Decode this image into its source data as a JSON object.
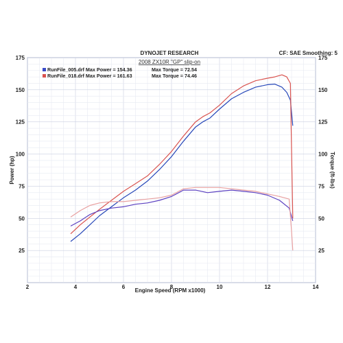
{
  "header": {
    "company": "DYNOJET RESEARCH",
    "settings": "CF: SAE  Smoothing: 5",
    "title": "2008 ZX10R \"GP\" slip-on"
  },
  "legend": [
    {
      "text": "RunFile_005.drf Max Power = 154.36",
      "torque_text": "Max Torque = 72.54",
      "color": "#3a4bc8"
    },
    {
      "text": "RunFile_018.drf Max Power = 161.63",
      "torque_text": "Max Torque = 74.46",
      "color": "#d9534f"
    }
  ],
  "chart_data": {
    "type": "line",
    "title": "2008 ZX10R \"GP\" slip-on",
    "xlabel": "Engine Speed (RPM x1000)",
    "ylabel": "Power (hp)",
    "y2label": "Torque (ft-lbs)",
    "xlim": [
      2,
      14
    ],
    "ylim": [
      0,
      175
    ],
    "xticks": [
      "2",
      "4",
      "6",
      "8",
      "10",
      "12",
      "14"
    ],
    "yticks": [
      "25",
      "50",
      "75",
      "100",
      "125",
      "150",
      "175"
    ],
    "y2ticks": [
      "25",
      "50",
      "75",
      "100",
      "125",
      "150",
      "175"
    ],
    "grid": true,
    "series": [
      {
        "name": "RunFile_005.drf Power",
        "kind": "power",
        "color": "#2546b8",
        "x": [
          3.8,
          4.2,
          4.6,
          5.0,
          5.5,
          6.0,
          6.5,
          7.0,
          7.5,
          8.0,
          8.5,
          9.0,
          9.3,
          9.6,
          10.0,
          10.5,
          11.0,
          11.5,
          12.0,
          12.3,
          12.6,
          12.8,
          12.95,
          13.05
        ],
        "y": [
          32,
          38,
          45,
          52,
          59,
          66,
          72,
          79,
          88,
          98,
          110,
          121,
          125,
          128,
          135,
          143,
          148,
          152,
          154,
          154.4,
          152,
          148,
          142,
          122
        ]
      },
      {
        "name": "RunFile_018.drf Power",
        "kind": "power",
        "color": "#d9534f",
        "x": [
          3.8,
          4.2,
          4.6,
          5.0,
          5.5,
          6.0,
          6.5,
          7.0,
          7.5,
          8.0,
          8.5,
          9.0,
          9.3,
          9.6,
          10.0,
          10.5,
          11.0,
          11.5,
          12.0,
          12.3,
          12.6,
          12.8,
          12.95,
          13.05
        ],
        "y": [
          38,
          45,
          51,
          57,
          64,
          71,
          77,
          83,
          92,
          102,
          114,
          125,
          129,
          132,
          138,
          147,
          153,
          157,
          159,
          160,
          161.6,
          160,
          155,
          50
        ]
      },
      {
        "name": "RunFile_005.drf Torque",
        "kind": "torque",
        "color": "#5a3fc0",
        "x": [
          3.8,
          4.2,
          4.6,
          5.0,
          5.5,
          6.0,
          6.5,
          7.0,
          7.5,
          8.0,
          8.5,
          9.0,
          9.5,
          10.0,
          10.5,
          11.0,
          11.5,
          12.0,
          12.5,
          12.9,
          13.05
        ],
        "y": [
          44,
          48,
          53,
          56,
          58,
          59,
          61,
          62,
          64,
          67,
          72,
          72,
          70,
          71,
          72,
          71,
          70,
          68,
          64,
          58,
          48
        ]
      },
      {
        "name": "RunFile_018.drf Torque",
        "kind": "torque",
        "color": "#e8a0a0",
        "x": [
          3.8,
          4.2,
          4.6,
          5.0,
          5.5,
          6.0,
          6.5,
          7.0,
          7.5,
          8.0,
          8.5,
          9.0,
          9.5,
          10.0,
          10.5,
          11.0,
          11.5,
          12.0,
          12.5,
          12.9,
          13.0,
          13.05
        ],
        "y": [
          51,
          56,
          60,
          62,
          63,
          63,
          64,
          65,
          66,
          68,
          73,
          74,
          74,
          74,
          73,
          72,
          71,
          69,
          67,
          65,
          40,
          25
        ]
      }
    ]
  }
}
